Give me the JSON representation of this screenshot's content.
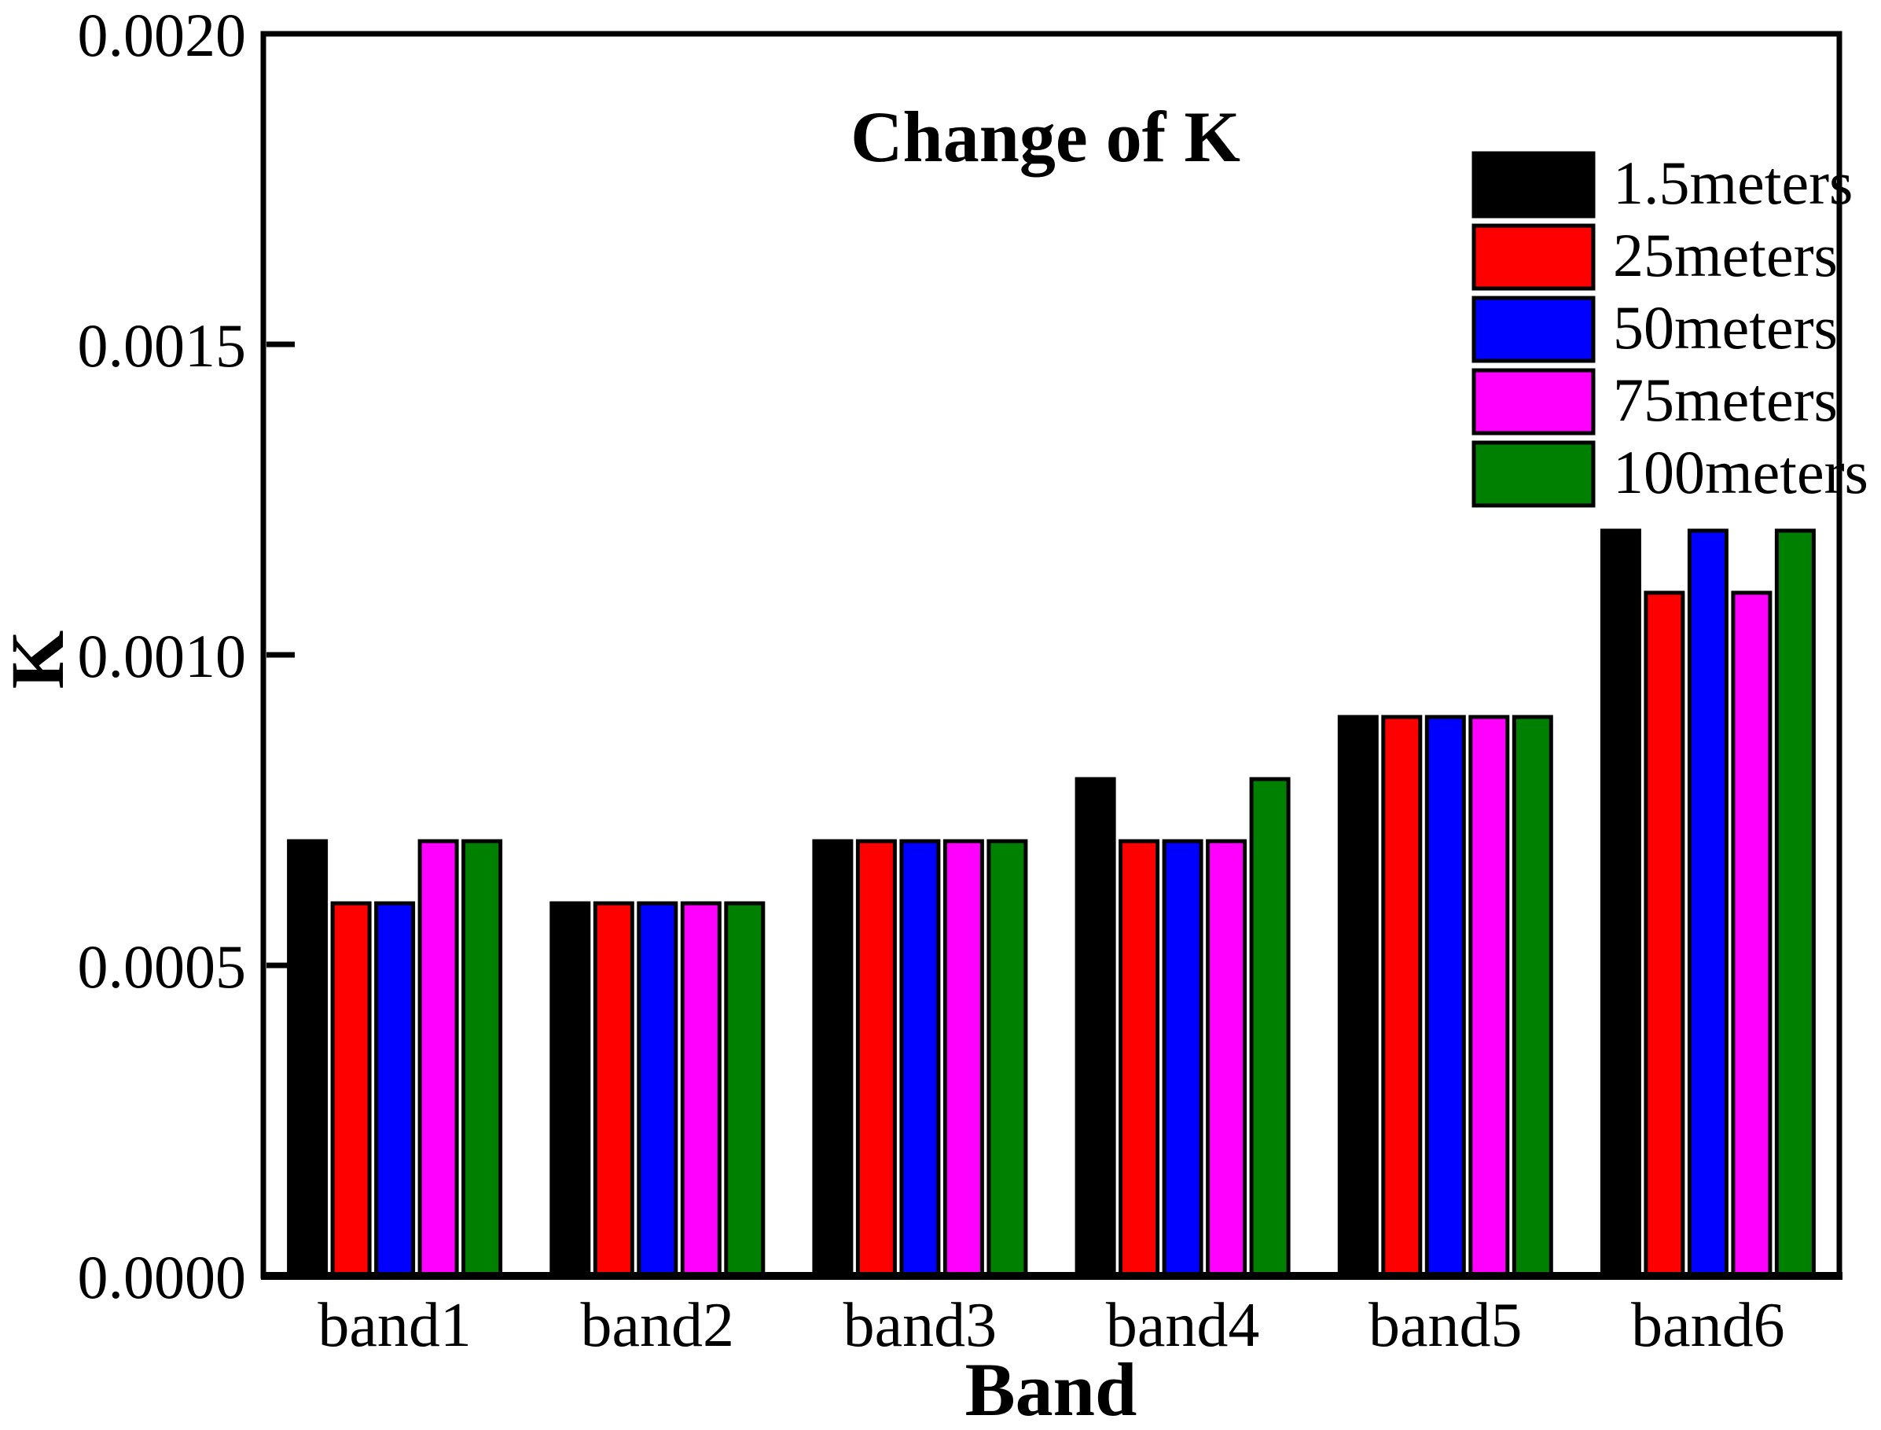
{
  "chart_data": {
    "type": "bar",
    "title": "Change of K",
    "xlabel": "Band",
    "ylabel": "K",
    "categories": [
      "band1",
      "band2",
      "band3",
      "band4",
      "band5",
      "band6"
    ],
    "series": [
      {
        "name": "1.5meters",
        "color": "#000000",
        "values": [
          0.0007,
          0.0006,
          0.0007,
          0.0008,
          0.0009,
          0.0012
        ]
      },
      {
        "name": "25meters",
        "color": "#FF0000",
        "values": [
          0.0006,
          0.0006,
          0.0007,
          0.0007,
          0.0009,
          0.0011
        ]
      },
      {
        "name": "50meters",
        "color": "#0000FF",
        "values": [
          0.0006,
          0.0006,
          0.0007,
          0.0007,
          0.0009,
          0.0012
        ]
      },
      {
        "name": "75meters",
        "color": "#FF00FF",
        "values": [
          0.0007,
          0.0006,
          0.0007,
          0.0007,
          0.0009,
          0.0011
        ]
      },
      {
        "name": "100meters",
        "color": "#008000",
        "values": [
          0.0007,
          0.0006,
          0.0007,
          0.0008,
          0.0009,
          0.0012
        ]
      }
    ],
    "ylim": [
      0,
      0.002
    ],
    "y_ticks": [
      {
        "value": 0.0,
        "label": "0.0000"
      },
      {
        "value": 0.0005,
        "label": "0.0005"
      },
      {
        "value": 0.001,
        "label": "0.0010"
      },
      {
        "value": 0.0015,
        "label": "0.0015"
      },
      {
        "value": 0.002,
        "label": "0.0020"
      }
    ],
    "grid": false,
    "legend_position": "top-right",
    "frame": true,
    "bar_outline_color": "#000000",
    "background_color": "#FFFFFF"
  }
}
